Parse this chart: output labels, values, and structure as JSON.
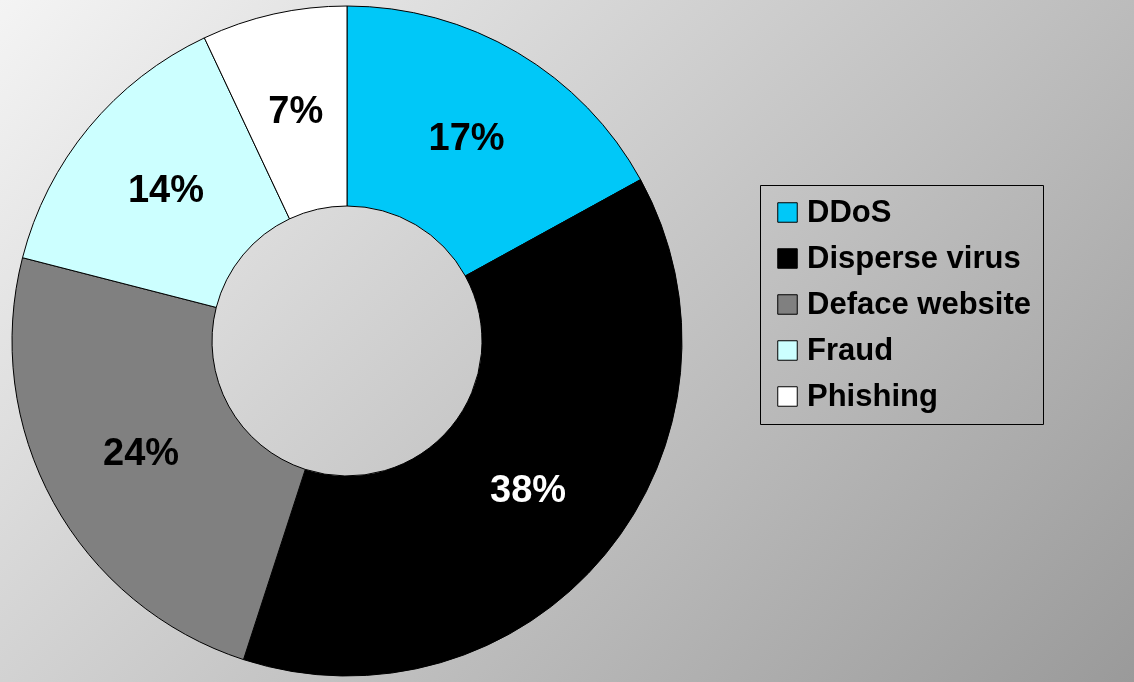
{
  "chart_data": {
    "type": "donut",
    "categories": [
      "DDoS",
      "Disperse virus",
      "Deface website",
      "Fraud",
      "Phishing"
    ],
    "values": [
      17,
      38,
      24,
      14,
      7
    ],
    "colors": [
      "#00c8f8",
      "#000000",
      "#808080",
      "#ccffff",
      "#ffffff"
    ],
    "value_labels": [
      "17%",
      "38%",
      "24%",
      "14%",
      "7%"
    ],
    "legend": "right"
  }
}
